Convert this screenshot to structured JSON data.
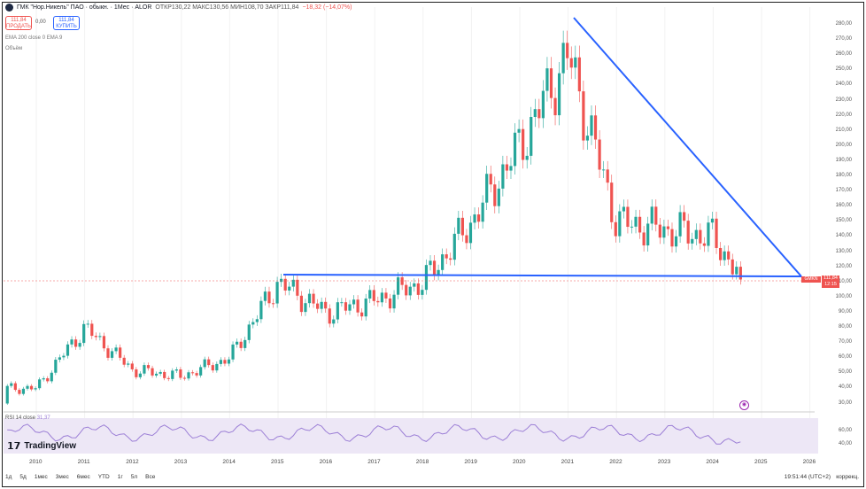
{
  "header": {
    "title": "ГМК \"Нор.Никель\" ПАО · обыкн. · 1Мес · ALOR",
    "ohlc": "ОТКР130,22 МАКС130,56 МИН108,70 ЗАКР111,84",
    "change": "−18,32 (−14,07%)"
  },
  "trade": {
    "sell_price": "111,84",
    "sell_label": "ПРОДАТЬ",
    "spread": "0,00",
    "buy_price": "111,84",
    "buy_label": "КУПИТЬ"
  },
  "indicators": {
    "ema": "EMA 200 close 0 EMA 9",
    "volume": "Объём"
  },
  "rsi": {
    "label": "RSI 14 close",
    "value": "31,37"
  },
  "y_axis_ticks": [
    "280,00",
    "270,00",
    "260,00",
    "250,00",
    "240,00",
    "230,00",
    "220,00",
    "210,00",
    "200,00",
    "190,00",
    "180,00",
    "170,00",
    "160,00",
    "150,00",
    "140,00",
    "130,00",
    "120,00",
    "110,00",
    "100,00",
    "90,00",
    "80,00",
    "70,00",
    "60,00",
    "50,00",
    "40,00",
    "30,00"
  ],
  "rsi_ticks": [
    "60,00",
    "40,00"
  ],
  "x_axis_ticks": [
    "2010",
    "2011",
    "2012",
    "2013",
    "2014",
    "2015",
    "2016",
    "2017",
    "2018",
    "2019",
    "2020",
    "2021",
    "2022",
    "2023",
    "2024",
    "2025",
    "2026"
  ],
  "price_badge": {
    "name": "GMKN",
    "price": "111,84",
    "time": "12:15"
  },
  "toolbar": [
    "1д",
    "5д",
    "1мес",
    "3мес",
    "6мес",
    "YTD",
    "1г",
    "5л",
    "Все"
  ],
  "status": {
    "time": "19:51:44 (UTC+2)",
    "mode": "коррекц."
  },
  "brand": "TradingView",
  "colors": {
    "up": "#26a69a",
    "down": "#ef5350",
    "trendline": "#2962ff",
    "rsi": "#9c7fd6"
  },
  "chart_data": {
    "type": "candlestick",
    "interval": "1 month",
    "ylim": [
      25,
      290
    ],
    "trendlines": [
      {
        "name": "support",
        "points": [
          [
            "2015-01",
            117.5
          ],
          [
            "2025-09",
            117.5
          ]
        ]
      },
      {
        "name": "resistance",
        "points": [
          [
            "2021-01",
            285
          ],
          [
            "2025-09",
            117.5
          ]
        ]
      }
    ],
    "last": {
      "open": 130.22,
      "high": 130.56,
      "low": 108.7,
      "close": 111.84
    },
    "approx_closes_by_year": [
      {
        "year": 2010,
        "close": 40
      },
      {
        "year": 2011,
        "close": 80
      },
      {
        "year": 2012,
        "close": 52
      },
      {
        "year": 2013,
        "close": 48
      },
      {
        "year": 2014,
        "close": 60
      },
      {
        "year": 2015,
        "close": 110
      },
      {
        "year": 2016,
        "close": 90
      },
      {
        "year": 2017,
        "close": 98
      },
      {
        "year": 2018,
        "close": 110
      },
      {
        "year": 2019,
        "close": 150
      },
      {
        "year": 2020,
        "close": 200
      },
      {
        "year": 2021,
        "close": 260
      },
      {
        "year": 2022,
        "close": 150
      },
      {
        "year": 2023,
        "close": 145
      },
      {
        "year": 2024,
        "close": 140
      },
      {
        "year": 2024.6,
        "close": 111.84
      }
    ]
  }
}
